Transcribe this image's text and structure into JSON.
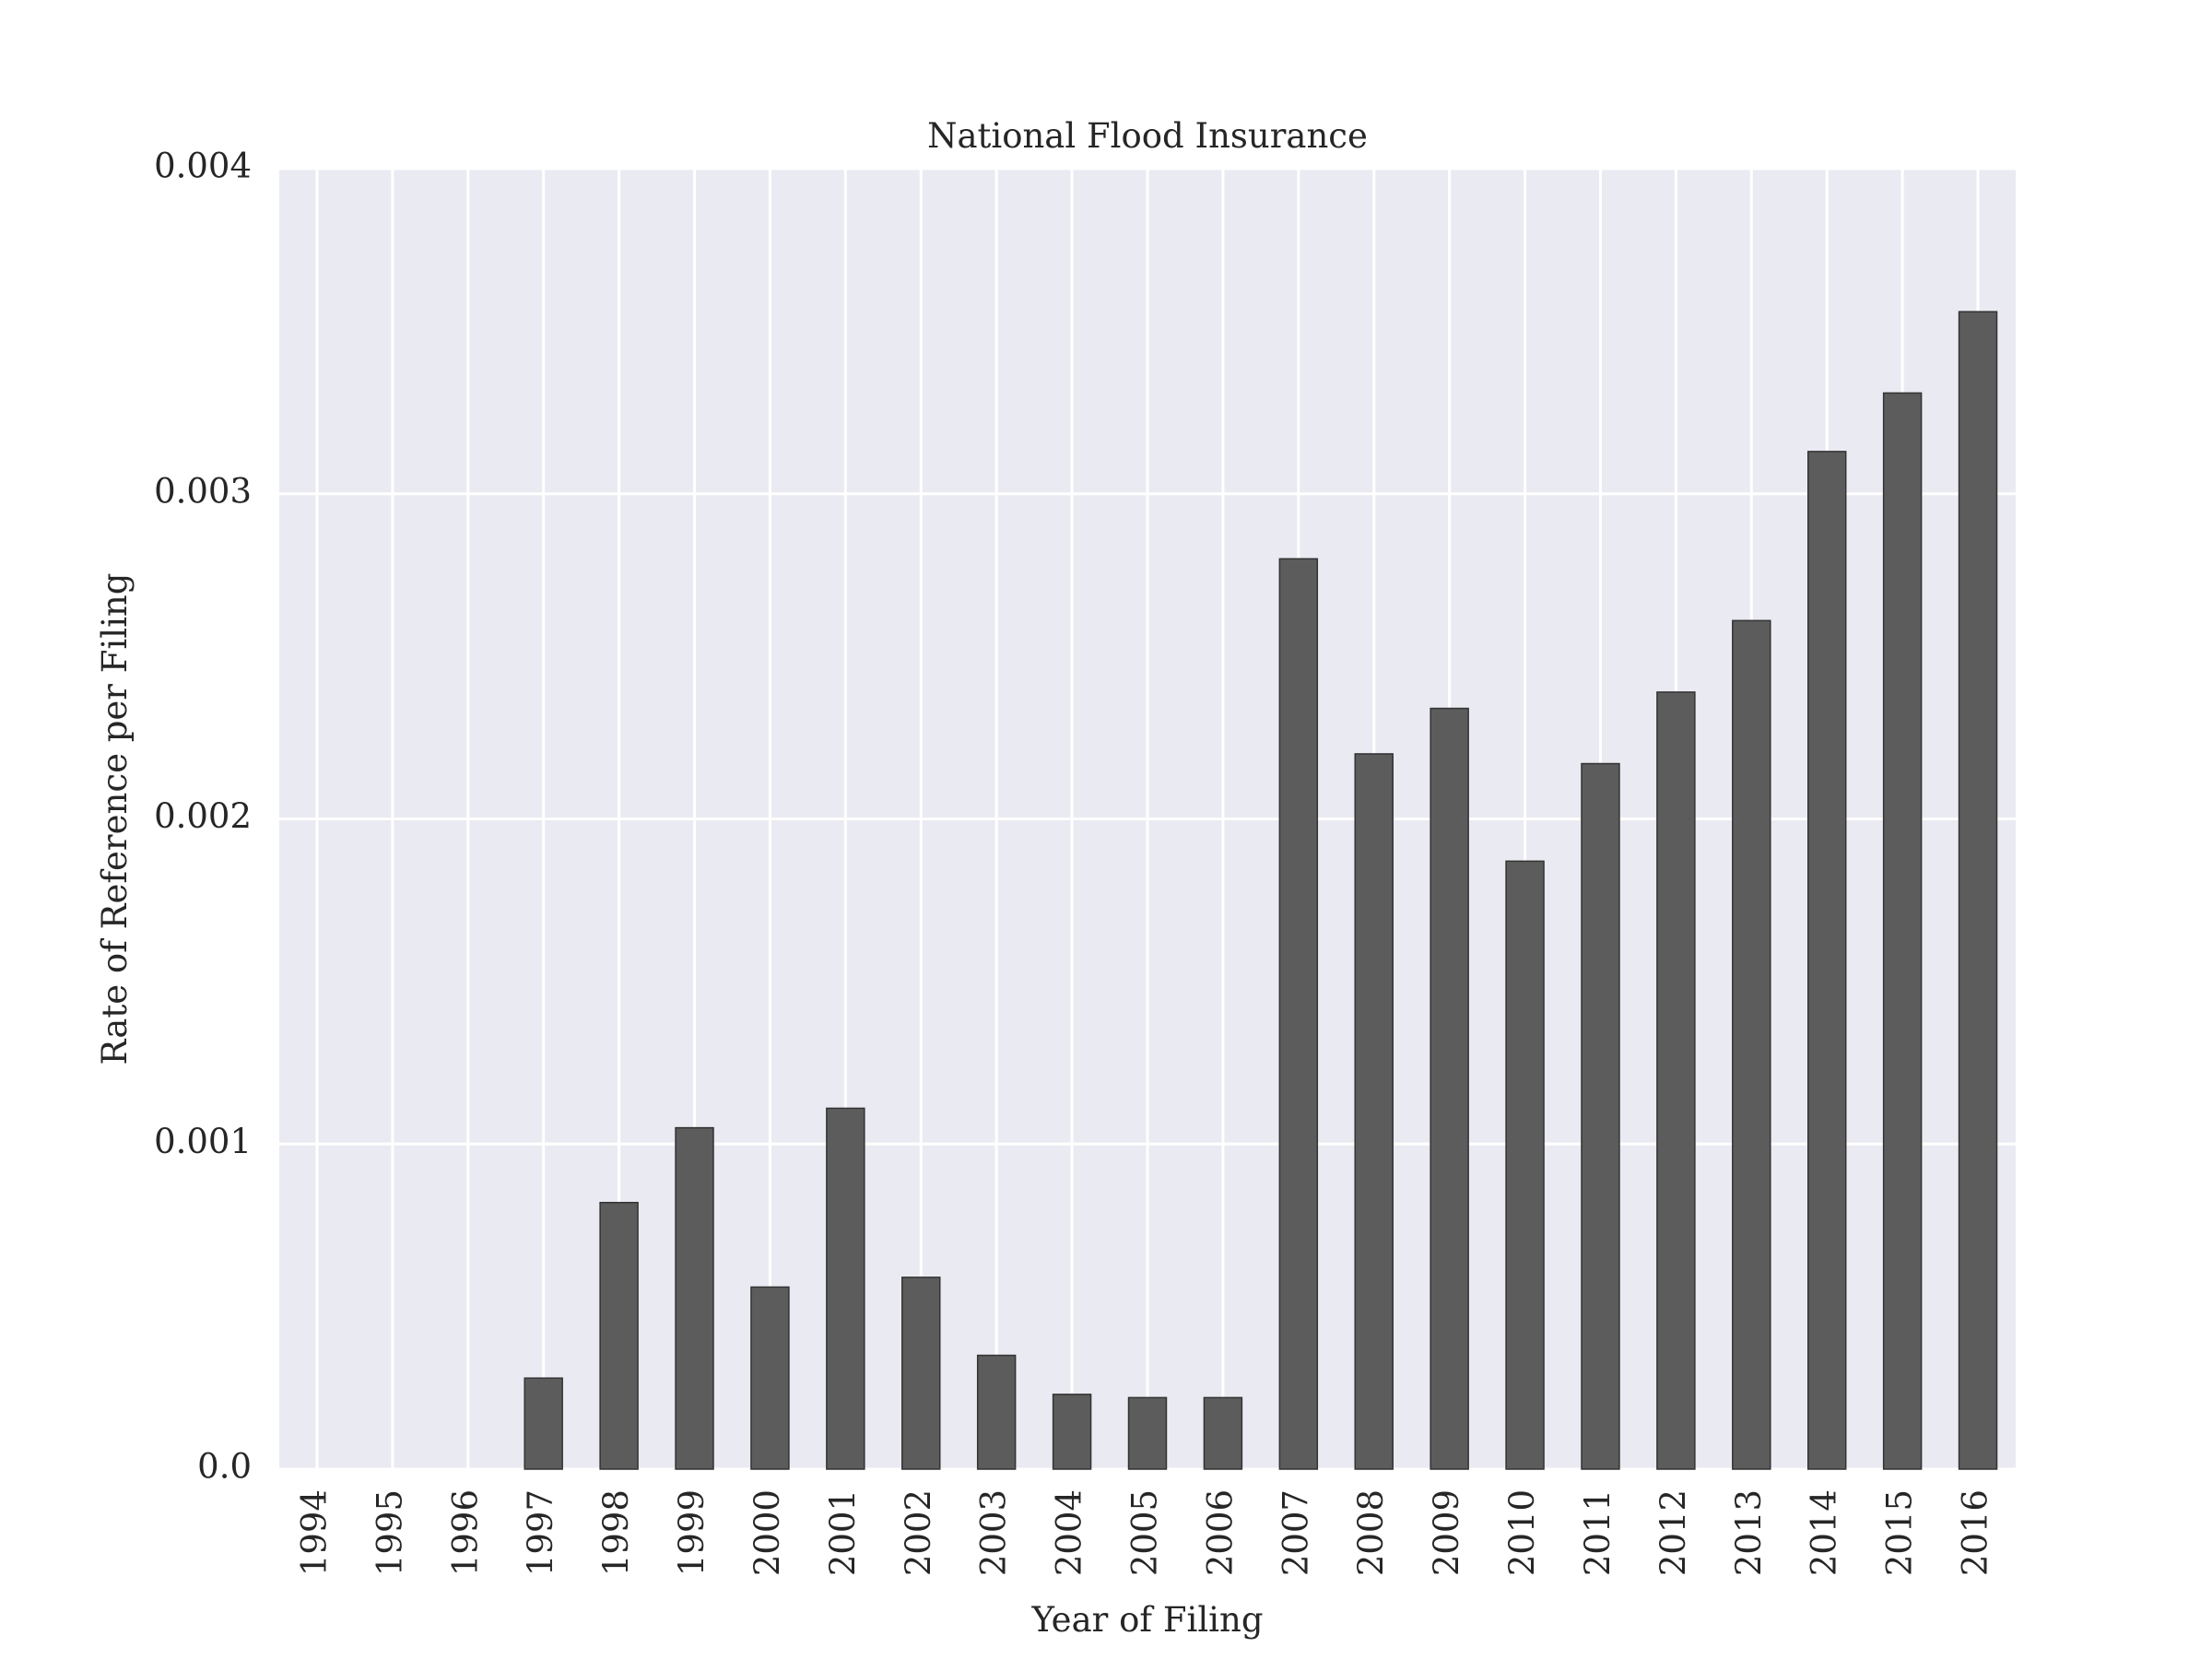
{
  "chart_data": {
    "type": "bar",
    "title": "National Flood Insurance",
    "xlabel": "Year of Filing",
    "ylabel": "Rate of Reference per Filing",
    "categories": [
      "1994",
      "1995",
      "1996",
      "1997",
      "1998",
      "1999",
      "2000",
      "2001",
      "2002",
      "2003",
      "2004",
      "2005",
      "2006",
      "2007",
      "2008",
      "2009",
      "2010",
      "2011",
      "2012",
      "2013",
      "2014",
      "2015",
      "2016"
    ],
    "values": [
      0.0,
      0.0,
      0.0,
      0.00028,
      0.00082,
      0.00105,
      0.00056,
      0.00111,
      0.00059,
      0.00035,
      0.00023,
      0.00022,
      0.00022,
      0.0028,
      0.0022,
      0.00234,
      0.00187,
      0.00217,
      0.00239,
      0.00261,
      0.00313,
      0.00331,
      0.00356
    ],
    "ylim": [
      0,
      0.004
    ],
    "yticks": [
      0.0,
      0.001,
      0.002,
      0.003,
      0.004
    ],
    "ytick_labels": [
      "0.0",
      "0.001",
      "0.002",
      "0.003",
      "0.004"
    ],
    "grid": true,
    "legend": "none",
    "colors": {
      "bar": "#5c5c5c",
      "bar_edge": "#333333",
      "plot_background": "#eaeaf2",
      "grid": "#ffffff",
      "text": "#262626"
    }
  }
}
